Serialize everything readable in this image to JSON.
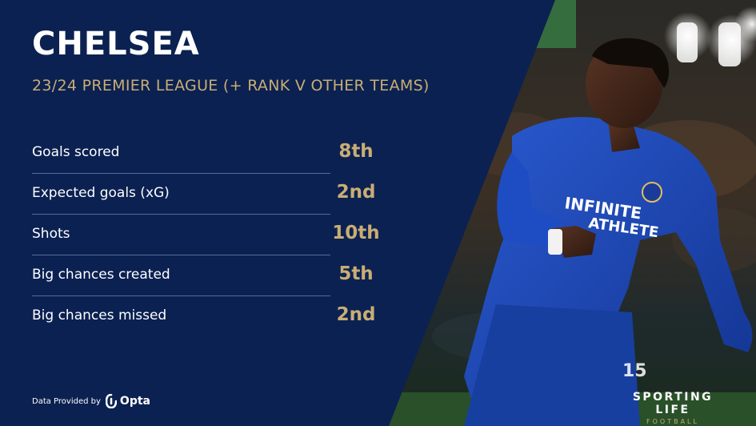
{
  "header": {
    "title": "CHELSEA",
    "subtitle": "23/24 PREMIER LEAGUE (+ RANK V OTHER TEAMS)"
  },
  "stats": [
    {
      "label": "Goals scored",
      "rank": "8th"
    },
    {
      "label": "Expected goals (xG)",
      "rank": "2nd"
    },
    {
      "label": "Shots",
      "rank": "10th"
    },
    {
      "label": "Big chances created",
      "rank": "5th"
    },
    {
      "label": "Big chances missed",
      "rank": "2nd"
    }
  ],
  "footer": {
    "provided_by": "Data Provided by",
    "provider_name": "Opta",
    "brand_main": "SPORTING LIFE",
    "brand_sub": "FOOTBALL"
  },
  "colors": {
    "navy": "#0b2152",
    "gold": "#c9ad74",
    "kit_blue": "#1d48b8"
  }
}
